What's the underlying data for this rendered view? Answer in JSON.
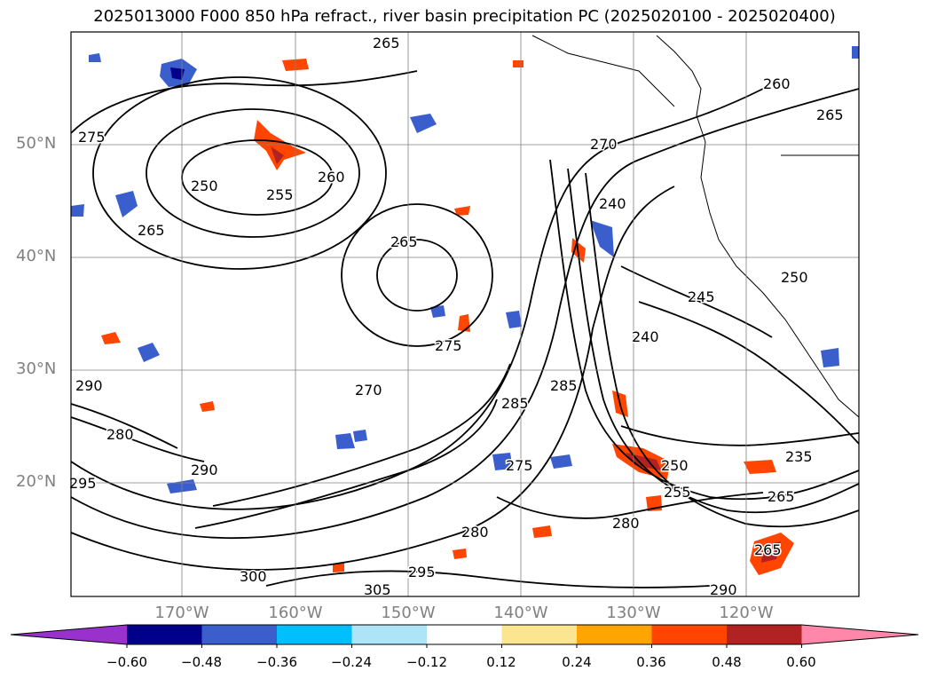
{
  "title": "2025013000 F000 850 hPa refract., river basin precipitation PC (2025020100 - 2025020400)",
  "lat_labels": [
    "50°N",
    "40°N",
    "30°N",
    "20°N"
  ],
  "lon_labels": [
    "170°W",
    "160°W",
    "150°W",
    "140°W",
    "130°W",
    "120°W"
  ],
  "contour_labels": [
    "265",
    "275",
    "250",
    "255",
    "260",
    "265",
    "265",
    "270",
    "260",
    "250",
    "240",
    "245",
    "240",
    "255",
    "250",
    "285",
    "275",
    "285",
    "290",
    "295",
    "300",
    "305",
    "295",
    "290",
    "280",
    "235",
    "265",
    "265",
    "275",
    "290",
    "270",
    "265",
    "280",
    "280"
  ],
  "colorbar": {
    "ticks": [
      "−0.60",
      "−0.48",
      "−0.36",
      "−0.24",
      "−0.12",
      "0.12",
      "0.24",
      "0.36",
      "0.48",
      "0.60"
    ],
    "colors": [
      "#9932cc",
      "#00008b",
      "#3a5fcd",
      "#00bfff",
      "#aee4f8",
      "#ffffff",
      "#fbe591",
      "#ffa500",
      "#ff4500",
      "#b22222",
      "#ff88aa"
    ]
  }
}
